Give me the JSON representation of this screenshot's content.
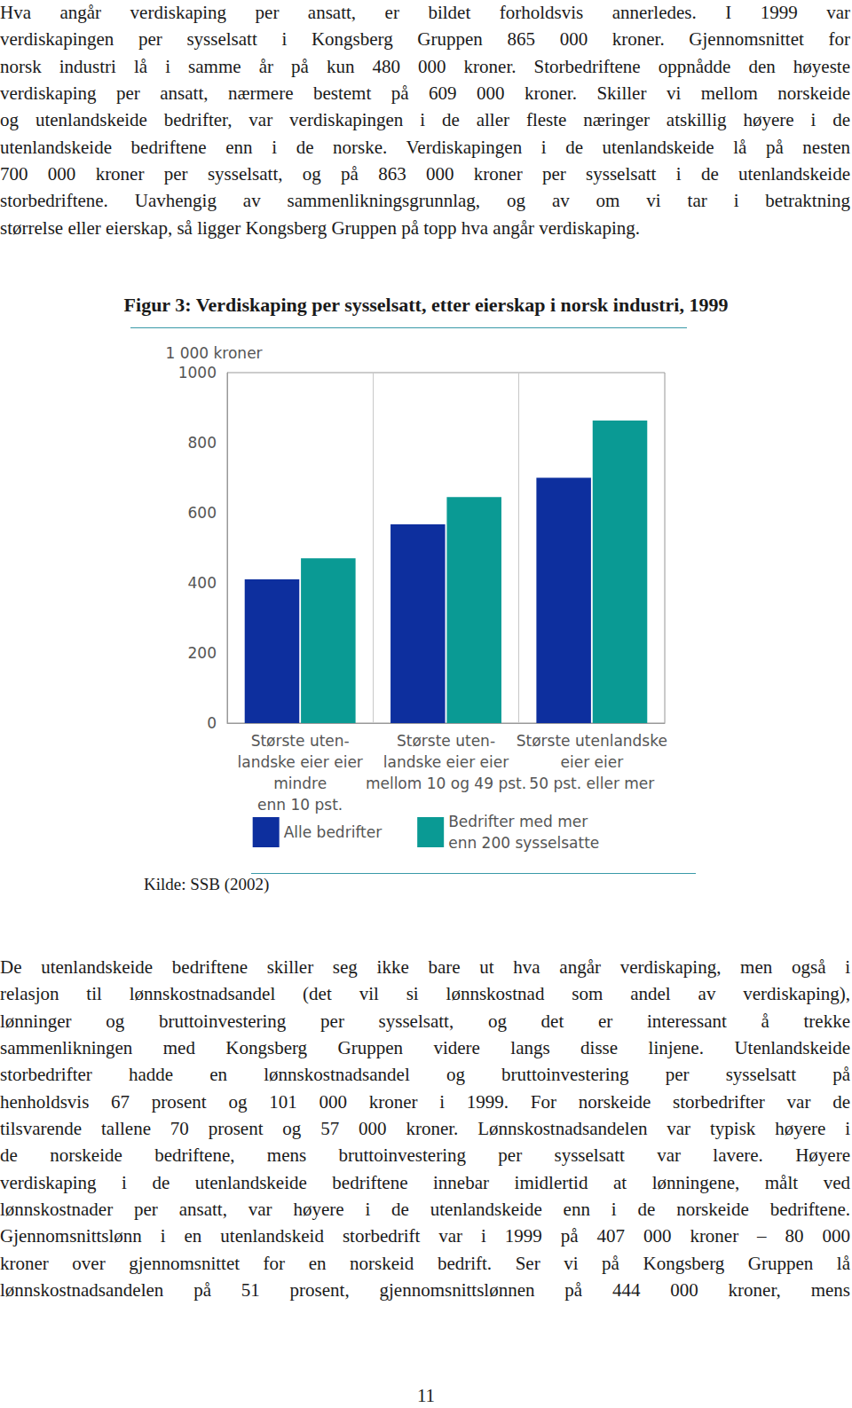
{
  "paragraphs_before": [
    [
      "Hva angår verdiskaping per ansatt, er bildet forholdsvis annerledes. I 1999 var",
      "verdiskapingen per sysselsatt i Kongsberg Gruppen 865 000 kroner. Gjennomsnittet for",
      "norsk industri lå i samme år på kun 480 000 kroner. Storbedriftene oppnådde den høyeste",
      "verdiskaping per ansatt, nærmere bestemt på 609 000 kroner. Skiller vi mellom norskeide",
      "og utenlandskeide bedrifter, var verdiskapingen i de aller fleste næringer atskillig høyere i de",
      "utenlandskeide bedriftene enn i de norske. Verdiskapingen i de utenlandskeide lå på nesten",
      "700 000 kroner per sysselsatt, og på 863 000 kroner per sysselsatt i de utenlandskeide",
      "storbedriftene. Uavhengig av sammenlikningsgrunnlag, og av om vi tar i betraktning",
      "størrelse eller eierskap, så ligger Kongsberg Gruppen på topp hva angår verdiskaping."
    ]
  ],
  "chart_data": {
    "type": "bar",
    "title": "Figur 3: Verdiskaping per sysselsatt, etter eierskap i norsk industri, 1999",
    "ylabel": "1 000 kroner",
    "categories": [
      "Største uten-\nlandske eier eier\nmindre\nenn 10 pst.",
      "Største uten-\nlandske eier eier\nmellom 10 og 49 pst.",
      "Største utenlandske\neier eier\n50 pst. eller mer"
    ],
    "series": [
      {
        "name": "Alle bedrifter",
        "color": "#0d2f9e",
        "values": [
          410,
          567,
          700
        ]
      },
      {
        "name": "Bedrifter med mer\nenn 200 sysselsatte",
        "color": "#0a9a94",
        "values": [
          470,
          645,
          863
        ]
      }
    ],
    "ylim": [
      0,
      1000
    ],
    "yticks": [
      0,
      200,
      400,
      600,
      800,
      1000
    ],
    "grid": true,
    "legend": "bottom"
  },
  "source": "Kilde: SSB (2002)",
  "paragraphs_after": [
    [
      "De utenlandskeide bedriftene skiller seg ikke bare ut hva angår verdiskaping, men også i",
      "relasjon til lønnskostnadsandel (det vil si lønnskostnad som andel av verdiskaping),",
      "lønninger og bruttoinvestering per sysselsatt, og det er interessant å trekke",
      "sammenlikningen med Kongsberg Gruppen videre langs disse linjene. Utenlandskeide",
      "storbedrifter hadde en lønnskostnadsandel og bruttoinvestering per sysselsatt på",
      "henholdsvis 67 prosent og 101 000 kroner i 1999. For norskeide storbedrifter var de",
      "tilsvarende tallene 70 prosent og 57 000 kroner. Lønnskostnadsandelen var typisk høyere i",
      "de norskeide bedriftene, mens bruttoinvestering per sysselsatt var lavere. Høyere",
      "verdiskaping i de utenlandskeide bedriftene innebar imidlertid at lønningene, målt ved",
      "lønnskostnader per ansatt, var høyere i de utenlandskeide enn i de norskeide bedriftene.",
      "Gjennomsnittslønn i en utenlandskeid storbedrift var i 1999 på 407 000 kroner – 80 000",
      "kroner over gjennomsnittet for en norskeid bedrift. Ser vi på Kongsberg Gruppen lå",
      "lønnskostnadsandelen på 51 prosent, gjennomsnittslønnen på 444 000 kroner, mens"
    ]
  ],
  "page_number": "11"
}
